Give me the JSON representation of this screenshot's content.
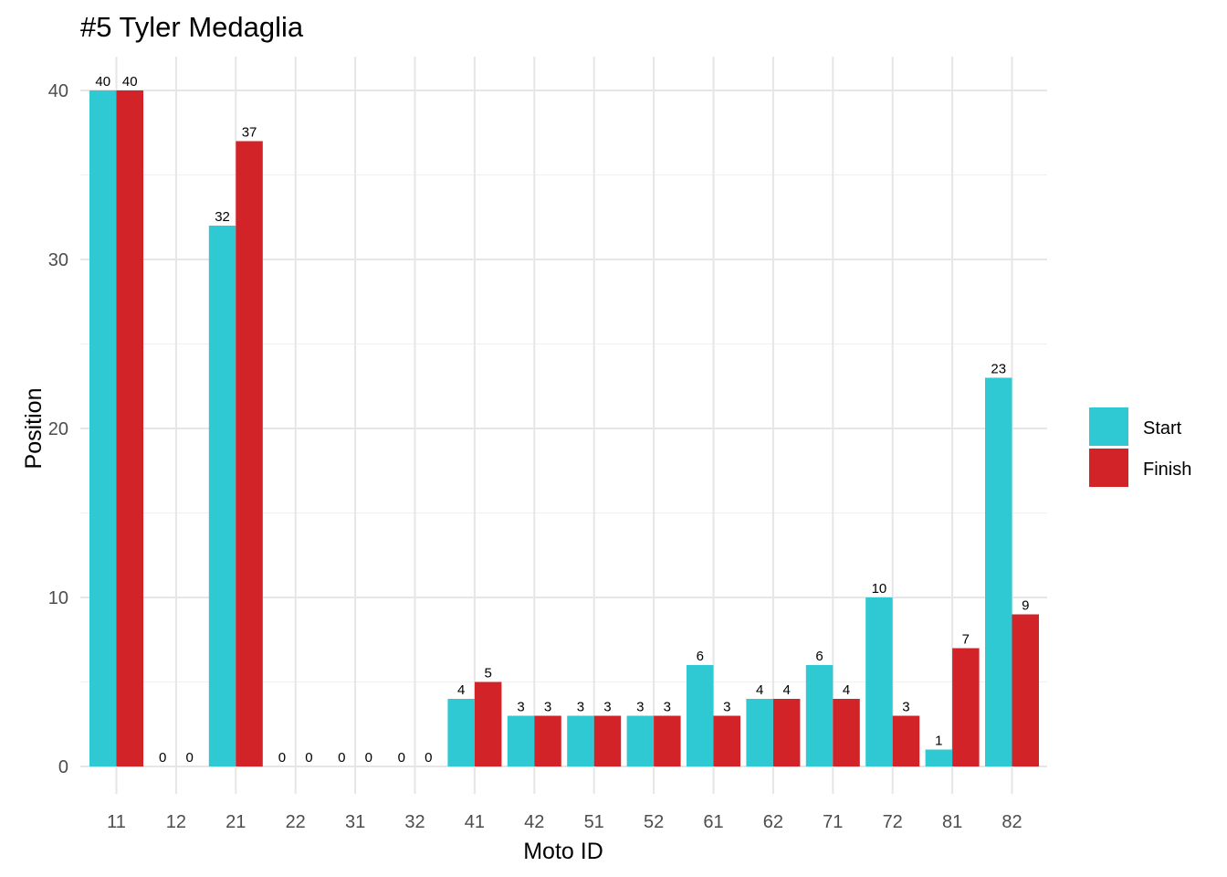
{
  "chart_data": {
    "type": "bar",
    "title": "#5 Tyler Medaglia",
    "xlabel": "Moto ID",
    "ylabel": "Position",
    "categories": [
      "11",
      "12",
      "21",
      "22",
      "31",
      "32",
      "41",
      "42",
      "51",
      "52",
      "61",
      "62",
      "71",
      "72",
      "81",
      "82"
    ],
    "series": [
      {
        "name": "Start",
        "color": "#2EC9D2",
        "values": [
          40,
          0,
          32,
          0,
          0,
          0,
          4,
          3,
          3,
          3,
          6,
          4,
          6,
          10,
          1,
          23
        ]
      },
      {
        "name": "Finish",
        "color": "#D22428",
        "values": [
          40,
          0,
          37,
          0,
          0,
          0,
          5,
          3,
          3,
          3,
          3,
          4,
          4,
          3,
          7,
          9
        ]
      }
    ],
    "ylim": [
      0,
      40
    ],
    "yticks": [
      0,
      10,
      20,
      30,
      40
    ],
    "grid": true,
    "legend_position": "right",
    "data_labels": true
  }
}
